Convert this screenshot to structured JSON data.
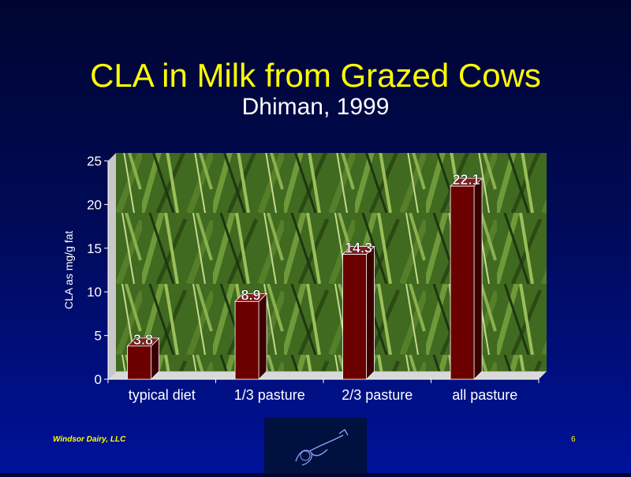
{
  "title": "CLA in Milk from Grazed Cows",
  "subtitle": "Dhiman, 1999",
  "footer": {
    "company": "Windsor Dairy, LLC",
    "page_number": "6"
  },
  "colors": {
    "title": "#ffff00",
    "bar": "#6b0000",
    "text": "#ffffff",
    "background": "#000a55"
  },
  "chart_data": {
    "type": "bar",
    "categories": [
      "typical diet",
      "1/3 pasture",
      "2/3 pasture",
      "all pasture"
    ],
    "values": [
      3.8,
      8.9,
      14.3,
      22.1
    ],
    "data_labels": [
      "3.8",
      "8.9",
      "14.3",
      "22.1"
    ],
    "ylabel": "CLA as mg/g fat",
    "xlabel": "",
    "ylim": [
      0,
      25
    ],
    "yticks": [
      0,
      5,
      10,
      15,
      20,
      25
    ],
    "grid": false,
    "style": "3d bars over grass photograph background"
  }
}
